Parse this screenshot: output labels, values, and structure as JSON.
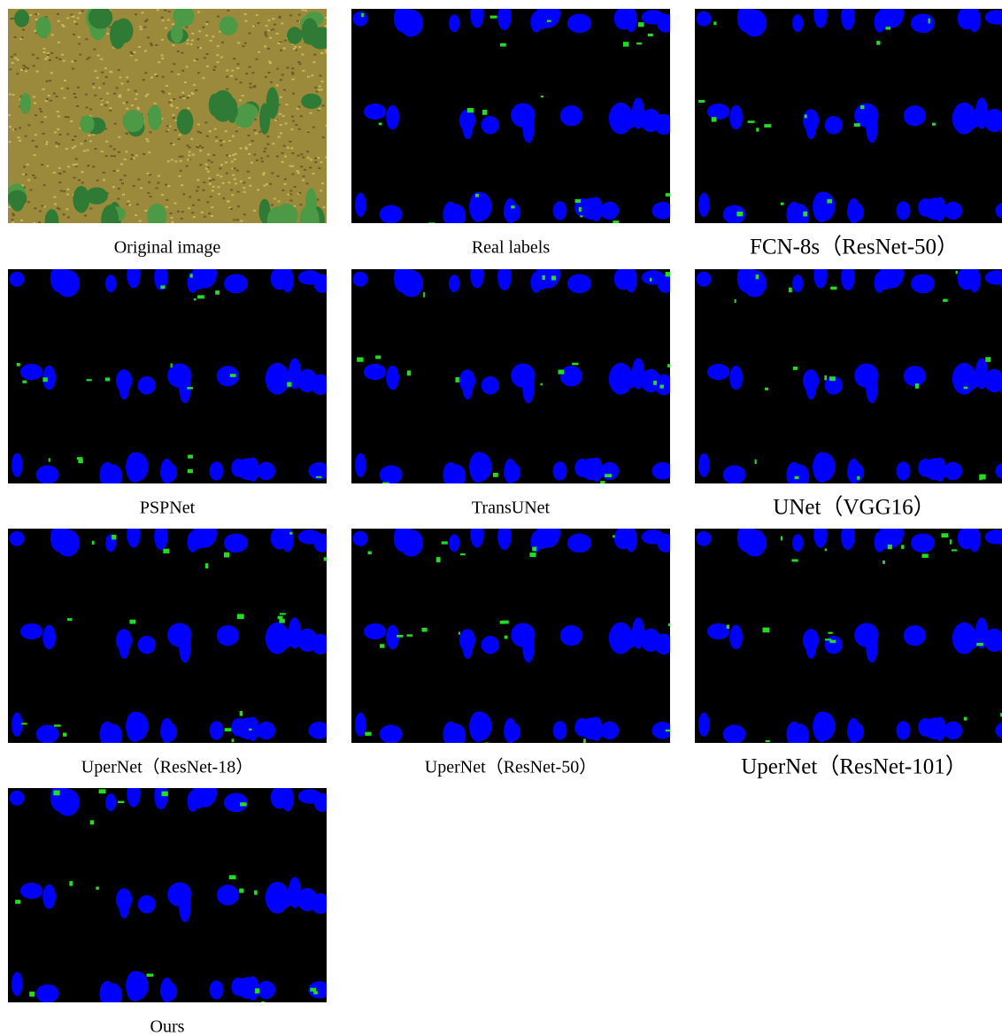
{
  "panels": [
    {
      "caption": "Original image"
    },
    {
      "caption": "Real labels"
    },
    {
      "caption": "FCN-8s（ResNet-50）"
    },
    {
      "caption": "PSPNet"
    },
    {
      "caption": "TransUNet"
    },
    {
      "caption": "UNet（VGG16）"
    },
    {
      "caption": "UperNet（ResNet-18）"
    },
    {
      "caption": "UperNet（ResNet-50）"
    },
    {
      "caption": "UperNet（ResNet-101）"
    },
    {
      "caption": "Ours"
    }
  ]
}
